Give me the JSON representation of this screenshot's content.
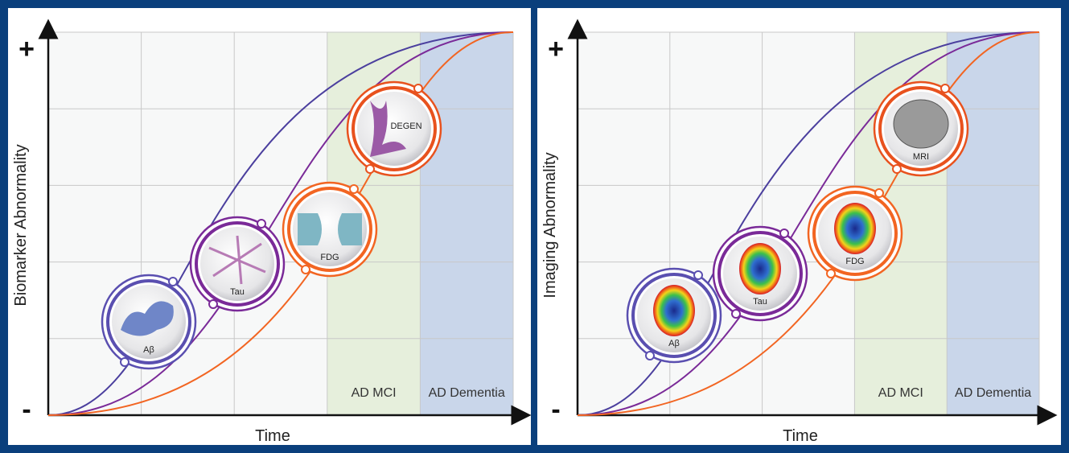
{
  "panels": [
    {
      "y_label": "Biomarker Abnormality",
      "x_label": "Time",
      "plus": "+",
      "minus": "-",
      "regions": [
        "AD MCI",
        "AD Dementia"
      ],
      "nodes": [
        "Aβ",
        "Tau",
        "FDG",
        "DEGEN"
      ]
    },
    {
      "y_label": "Imaging Abnormality",
      "x_label": "Time",
      "plus": "+",
      "minus": "-",
      "regions": [
        "AD MCI",
        "AD Dementia"
      ],
      "nodes": [
        "Aβ",
        "Tau",
        "FDG",
        "MRI"
      ]
    }
  ]
}
